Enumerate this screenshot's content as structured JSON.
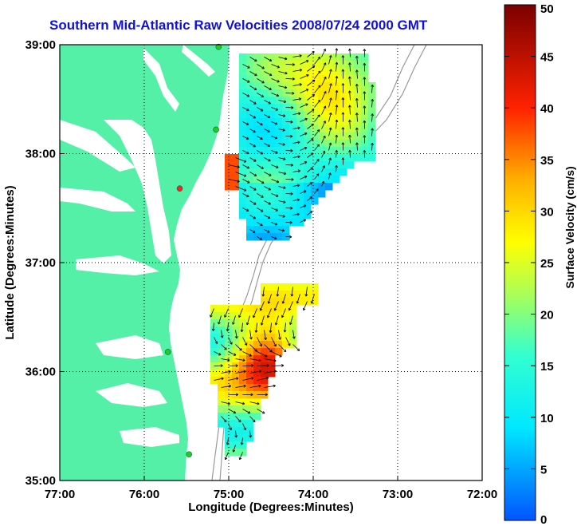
{
  "title": "Southern Mid-Atlantic Raw Velocities 2008/07/24 2000 GMT",
  "map": {
    "xlabel": "Longitude (Degrees:Minutes)",
    "ylabel": "Latitude (Degrees:Minutes)",
    "x_ticks": [
      "77:00",
      "76:00",
      "75:00",
      "74:00",
      "73:00",
      "72:00"
    ],
    "y_ticks": [
      "39:00",
      "38:00",
      "37:00",
      "36:00",
      "35:00"
    ],
    "xlim": [
      -77,
      -72
    ],
    "ylim": [
      35,
      39
    ],
    "grid": true,
    "land_color": "#55f0a8",
    "ocean_color": "#ffffff"
  },
  "colorbar": {
    "label": "Surface Velocity (cm/s)",
    "range": [
      0,
      50
    ],
    "ticks": [
      "50",
      "45",
      "40",
      "35",
      "30",
      "25",
      "20",
      "15",
      "10",
      "5",
      "0"
    ]
  },
  "stations": [
    {
      "lon": -75.12,
      "lat": 38.98,
      "color": "#22cc22"
    },
    {
      "lon": -75.15,
      "lat": 38.22,
      "color": "#22cc22"
    },
    {
      "lon": -75.58,
      "lat": 37.68,
      "color": "#ff2222"
    },
    {
      "lon": -75.72,
      "lat": 36.18,
      "color": "#22cc22"
    },
    {
      "lon": -75.47,
      "lat": 35.24,
      "color": "#22cc22"
    }
  ]
}
